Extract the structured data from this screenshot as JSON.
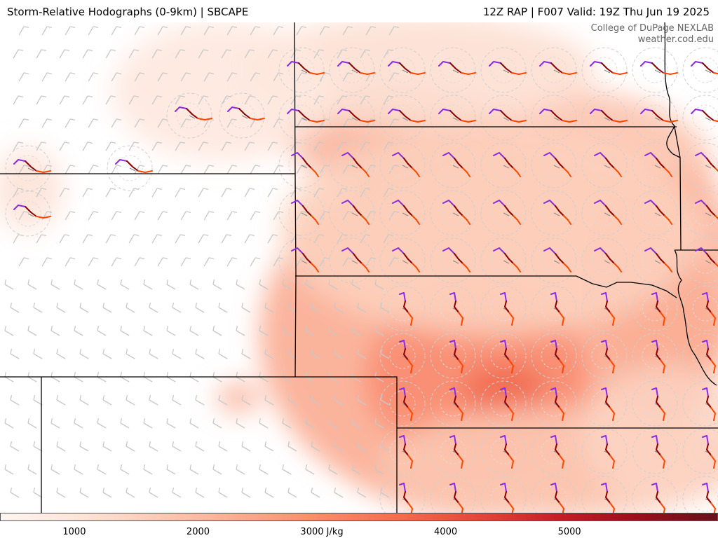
{
  "header": {
    "title_left": "Storm-Relative Hodographs (0-9km) | SBCAPE",
    "title_right": "12Z RAP | F007 Valid: 19Z Thu Jun 19 2025"
  },
  "credit": {
    "line1": "College of DuPage NEXLAB",
    "line2": "weather.cod.edu"
  },
  "colorbar": {
    "ticks": [
      {
        "value": 1000,
        "label": "1000"
      },
      {
        "value": 2000,
        "label": "2000"
      },
      {
        "value": 3000,
        "label": "3000 J/kg"
      },
      {
        "value": 4000,
        "label": "4000"
      },
      {
        "value": 5000,
        "label": "5000"
      }
    ],
    "min": 400,
    "max": 6200,
    "colors": [
      "#fff5f0",
      "#fee4d8",
      "#fcc9b4",
      "#fcaa8e",
      "#fc8a6a",
      "#f66b4d",
      "#e8453a",
      "#c81d25",
      "#9c0e1a",
      "#6b0f1c"
    ]
  },
  "map": {
    "cape_color": "#fc8a6a",
    "hodograph_colors": [
      "#8a2be2",
      "#8b0000",
      "#ff4500",
      "#ffa500"
    ]
  }
}
